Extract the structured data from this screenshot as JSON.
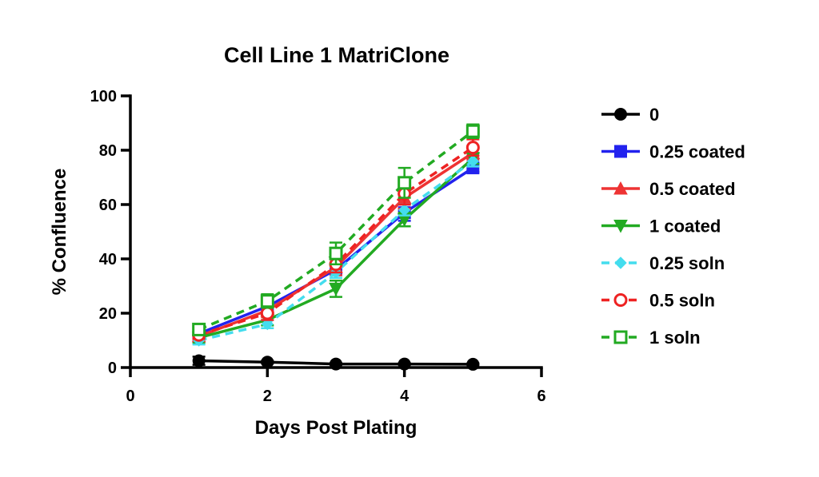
{
  "chart_data": {
    "type": "line",
    "title": "Cell Line 1 MatriClone",
    "xlabel": "Days Post Plating",
    "ylabel": "% Confluence",
    "xlim": [
      0,
      6
    ],
    "ylim": [
      0,
      100
    ],
    "xticks": [
      "0",
      "2",
      "4",
      "6"
    ],
    "yticks": [
      "0",
      "20",
      "40",
      "60",
      "80",
      "100"
    ],
    "x": [
      1,
      2,
      3,
      4,
      5
    ],
    "grid": false,
    "legend_position": "right",
    "series": [
      {
        "name": "0",
        "color": "#000000",
        "marker": "circle-filled",
        "dashed": false,
        "values": [
          2.5,
          2,
          1.3,
          1.3,
          1.2
        ],
        "errors": [
          1.5,
          0.5,
          0.3,
          0.3,
          0.3
        ]
      },
      {
        "name": "0.25 coated",
        "color": "#2222ee",
        "marker": "square-filled",
        "dashed": false,
        "values": [
          12.5,
          22.5,
          36,
          57,
          73.5
        ],
        "errors": [
          1.5,
          2,
          2,
          3,
          1.5
        ]
      },
      {
        "name": "0.5 coated",
        "color": "#ee3333",
        "marker": "triangle-up-filled",
        "dashed": false,
        "values": [
          11.5,
          21,
          37,
          62.5,
          79
        ],
        "errors": [
          1.5,
          2.5,
          3,
          4,
          2.5
        ]
      },
      {
        "name": "1 coated",
        "color": "#22aa22",
        "marker": "triangle-down-filled",
        "dashed": false,
        "values": [
          11,
          17.5,
          29,
          54.5,
          77
        ],
        "errors": [
          2,
          2,
          3,
          2.5,
          2
        ]
      },
      {
        "name": "0.25 soln",
        "color": "#44ddee",
        "marker": "diamond-filled",
        "dashed": true,
        "values": [
          10,
          16,
          35,
          58,
          76
        ],
        "errors": [
          1.5,
          1.5,
          2,
          2,
          2
        ]
      },
      {
        "name": "0.5 soln",
        "color": "#ee2222",
        "marker": "circle-open",
        "dashed": true,
        "values": [
          12,
          20,
          38,
          64,
          81
        ],
        "errors": [
          1.5,
          2.5,
          3,
          4,
          3
        ]
      },
      {
        "name": "1 soln",
        "color": "#22aa22",
        "marker": "square-open",
        "dashed": true,
        "values": [
          14,
          24.5,
          42,
          68,
          87
        ],
        "errors": [
          1.5,
          2.5,
          4,
          5.5,
          2.5
        ]
      }
    ]
  }
}
